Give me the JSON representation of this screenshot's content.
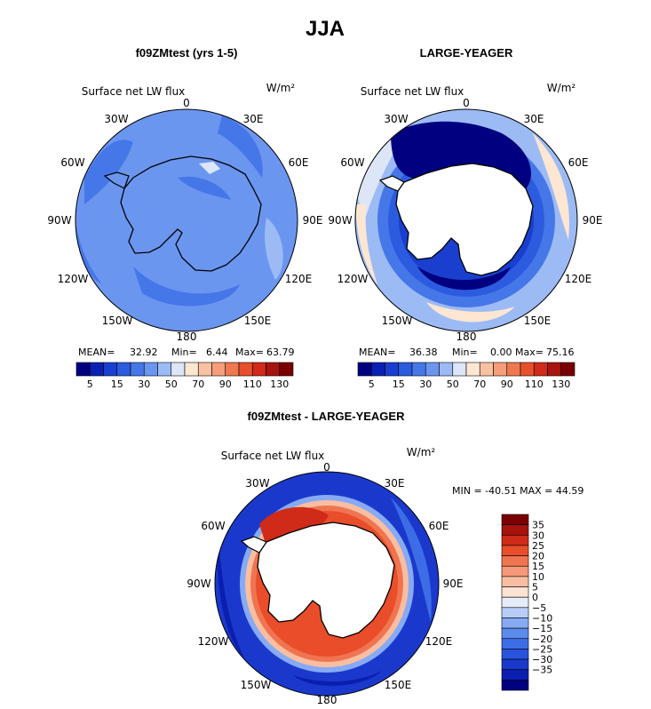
{
  "title": "JJA",
  "colors": {
    "land_white": "#ffffff",
    "coast": "#000000",
    "palette_abs": [
      "#000080",
      "#0a20b4",
      "#1a3fcf",
      "#2c5be0",
      "#4677e8",
      "#6b96f0",
      "#9cbbf5",
      "#dce6f7",
      "#fde6d2",
      "#f9c1a2",
      "#f59e79",
      "#f07850",
      "#e7502b",
      "#d12a1a",
      "#a8140f",
      "#7a0000"
    ],
    "palette_diff": [
      "#000080",
      "#0a1fb0",
      "#1a39cc",
      "#2952dd",
      "#3d6de6",
      "#5c8bee",
      "#86aaf3",
      "#b7cdf7",
      "#e6edf8",
      "#fde3d1",
      "#f9bea1",
      "#f59978",
      "#f07450",
      "#e94d2a",
      "#d02a18",
      "#a6130d",
      "#7a0000"
    ]
  },
  "panels": [
    {
      "id": "panel1",
      "title": "f09ZMtest (yrs 1-5)",
      "var_label": "Surface net LW flux",
      "units": "W/m²",
      "stats": {
        "mean_label": "MEAN=",
        "mean": "32.92",
        "min_label": "Min=",
        "min": "6.44",
        "max_label": "Max=",
        "max": "63.79"
      },
      "lon_labels": [
        "0",
        "30E",
        "60E",
        "90E",
        "120E",
        "150E",
        "180",
        "150W",
        "120W",
        "90W",
        "60W",
        "30W"
      ]
    },
    {
      "id": "panel2",
      "title": "LARGE-YEAGER",
      "var_label": "Surface net LW flux",
      "units": "W/m²",
      "stats": {
        "mean_label": "MEAN=",
        "mean": "36.38",
        "min_label": "Min=",
        "min": "0.00",
        "max_label": "Max=",
        "max": "75.16"
      },
      "lon_labels": [
        "0",
        "30E",
        "60E",
        "90E",
        "120E",
        "150E",
        "180",
        "150W",
        "120W",
        "90W",
        "60W",
        "30W"
      ]
    },
    {
      "id": "panel3",
      "title": "f09ZMtest - LARGE-YEAGER",
      "var_label": "Surface net LW flux",
      "units": "W/m²",
      "minmax_text": "MIN = -40.51 MAX =  44.59",
      "lon_labels": [
        "0",
        "30E",
        "60E",
        "90E",
        "120E",
        "150E",
        "180",
        "150W",
        "120W",
        "90W",
        "60W",
        "30W"
      ]
    }
  ],
  "colorbar_abs": {
    "tick_labels": [
      "5",
      "15",
      "30",
      "50",
      "70",
      "90",
      "110",
      "130"
    ]
  },
  "colorbar_diff": {
    "tick_labels": [
      "35",
      "30",
      "25",
      "20",
      "15",
      "10",
      "5",
      "0",
      "−5",
      "−10",
      "−15",
      "−20",
      "−25",
      "−30",
      "−35"
    ]
  },
  "chart_data": [
    {
      "type": "heatmap",
      "projection": "south polar stereographic",
      "title": "f09ZMtest (yrs 1-5)",
      "subtitle": "Surface net LW flux",
      "units": "W/m²",
      "levels": [
        5,
        10,
        15,
        20,
        30,
        40,
        50,
        60,
        70,
        80,
        90,
        100,
        110,
        120,
        130
      ],
      "mean": 32.92,
      "min": 6.44,
      "max": 63.79
    },
    {
      "type": "heatmap",
      "projection": "south polar stereographic",
      "title": "LARGE-YEAGER",
      "subtitle": "Surface net LW flux",
      "units": "W/m²",
      "levels": [
        5,
        10,
        15,
        20,
        30,
        40,
        50,
        60,
        70,
        80,
        90,
        100,
        110,
        120,
        130
      ],
      "mean": 36.38,
      "min": 0.0,
      "max": 75.16
    },
    {
      "type": "heatmap",
      "projection": "south polar stereographic",
      "title": "f09ZMtest - LARGE-YEAGER",
      "subtitle": "Surface net LW flux",
      "units": "W/m²",
      "levels": [
        -35,
        -30,
        -25,
        -20,
        -15,
        -10,
        -5,
        0,
        5,
        10,
        15,
        20,
        25,
        30,
        35
      ],
      "min": -40.51,
      "max": 44.59
    }
  ]
}
